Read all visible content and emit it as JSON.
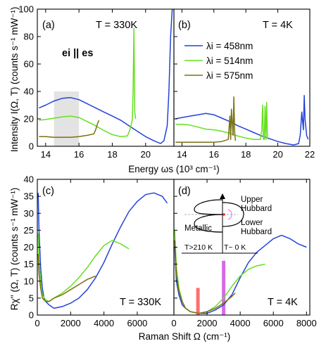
{
  "colors": {
    "blue": "#2443d8",
    "green": "#66e01f",
    "olive": "#7a7214",
    "salmon": "#ff6f6f",
    "violet": "#d66be6",
    "shade": "#e3e3e3"
  },
  "labels": {
    "y_top": "Intensity I(Ω, T) (counts s⁻¹ mW⁻¹)",
    "x_top": "Energy ωs (10³ cm⁻¹)",
    "y_bottom": "Rχ'' (Ω, T) (counts s⁻¹ mW⁻¹)",
    "x_bottom": "Raman Shift Ω (cm⁻¹)"
  },
  "panels": {
    "a": {
      "tag": "(a)",
      "temp": "T = 330K",
      "polarization": "ei || es"
    },
    "b": {
      "tag": "(b)",
      "temp": "T = 4K"
    },
    "c": {
      "tag": "(c)",
      "temp": "T = 330K"
    },
    "d": {
      "tag": "(d)",
      "temp": "T = 4K"
    }
  },
  "legend": [
    "λi = 458nm",
    "λi = 514nm",
    "λi = 575nm"
  ],
  "schematic": {
    "upper": "Upper",
    "upper2": "Hubbard",
    "metallic": "Metallic",
    "lower": "Lower",
    "lower2": "Hubbard",
    "t_high": "T>210 K",
    "t_low": "T~ 0 K"
  },
  "chart_data": [
    {
      "type": "line",
      "panel": "a",
      "xlim": [
        13.5,
        21.7
      ],
      "ylim": [
        0,
        100
      ],
      "xticks": [
        14,
        16,
        18,
        20
      ],
      "yticks": [
        0,
        20,
        40,
        60,
        80,
        100
      ],
      "shaded_region": [
        14.5,
        16
      ],
      "series": [
        {
          "name": "λi = 458nm",
          "color": "#2443d8",
          "x": [
            13.6,
            14.0,
            14.5,
            15.0,
            15.5,
            16.0,
            16.5,
            17.0,
            17.5,
            18.0,
            18.5,
            19.0,
            19.5,
            20.0,
            20.5,
            20.9,
            21.1,
            21.3,
            21.4,
            21.5,
            21.6
          ],
          "y": [
            28,
            30,
            33,
            35,
            35.5,
            34,
            31,
            28,
            25,
            22,
            19,
            15,
            11,
            7,
            4,
            2,
            4,
            15,
            40,
            80,
            100
          ]
        },
        {
          "name": "λi = 514nm",
          "color": "#66e01f",
          "x": [
            13.6,
            14.0,
            14.5,
            15.0,
            15.5,
            16.0,
            16.5,
            17.0,
            17.5,
            18.0,
            18.5,
            18.9,
            19.0,
            19.1,
            19.2,
            19.25,
            19.3,
            19.35,
            19.4
          ],
          "y": [
            19,
            19.5,
            20.5,
            21.5,
            22,
            21,
            18,
            15,
            11.5,
            8.5,
            7,
            7.5,
            10,
            14,
            19,
            40,
            86,
            25,
            20
          ]
        },
        {
          "name": "λi = 575nm",
          "color": "#7a7214",
          "x": [
            13.6,
            14.0,
            14.5,
            15.0,
            15.5,
            16.0,
            16.5,
            16.9,
            17.0,
            17.1,
            17.2
          ],
          "y": [
            7,
            7,
            6.5,
            6.5,
            6.5,
            7,
            8,
            9,
            12,
            16,
            19
          ]
        }
      ]
    },
    {
      "type": "line",
      "panel": "b",
      "xlim": [
        13.5,
        22
      ],
      "ylim": [
        0,
        100
      ],
      "xticks": [
        14,
        16,
        18,
        20,
        22
      ],
      "yticks": [
        0,
        20,
        40,
        60,
        80,
        100
      ],
      "series": [
        {
          "name": "λi = 458nm",
          "color": "#2443d8",
          "x": [
            13.6,
            14.0,
            14.5,
            15.0,
            15.5,
            16.0,
            16.5,
            17.0,
            17.5,
            18.0,
            18.5,
            19.0,
            19.5,
            20.0,
            20.5,
            21.0,
            21.3,
            21.4,
            21.5,
            21.6,
            21.65,
            21.7,
            21.8,
            21.9
          ],
          "y": [
            20,
            21,
            22,
            23,
            24,
            23,
            20.5,
            18,
            15,
            12.5,
            10,
            7.5,
            5.5,
            3.5,
            2,
            1,
            2,
            8,
            25,
            12,
            37,
            20,
            8,
            5
          ]
        },
        {
          "name": "λi = 514nm",
          "color": "#66e01f",
          "x": [
            13.6,
            14.0,
            14.5,
            15.0,
            15.5,
            16.0,
            16.5,
            17.0,
            17.5,
            18.0,
            18.5,
            18.9,
            19.0,
            19.05,
            19.1,
            19.15,
            19.2,
            19.25,
            19.3,
            19.35,
            19.4
          ],
          "y": [
            16,
            16,
            15.5,
            14,
            12.5,
            12,
            11,
            9.5,
            7.5,
            6,
            5,
            5,
            12,
            30,
            5,
            5,
            29,
            5,
            32,
            6,
            5
          ]
        },
        {
          "name": "λi = 575nm",
          "color": "#7a7214",
          "x": [
            13.6,
            14.0,
            14.5,
            15.0,
            15.5,
            16.0,
            16.5,
            16.9,
            17.0,
            17.05,
            17.1,
            17.2,
            17.25,
            17.3,
            17.35
          ],
          "y": [
            3,
            3,
            3,
            3,
            3,
            3,
            3.5,
            5,
            22,
            5,
            27,
            8,
            36,
            10,
            4
          ]
        }
      ]
    },
    {
      "type": "line",
      "panel": "c",
      "xlim": [
        0,
        8200
      ],
      "ylim": [
        0,
        40
      ],
      "xticks": [
        0,
        2000,
        4000,
        6000
      ],
      "yticks": [
        0,
        5,
        10,
        15,
        20,
        25,
        30,
        35,
        40
      ],
      "series": [
        {
          "name": "λi = 458nm",
          "color": "#2443d8",
          "x": [
            50,
            100,
            200,
            300,
            400,
            500,
            700,
            1000,
            1500,
            2000,
            2500,
            3000,
            3500,
            4000,
            4500,
            5000,
            5500,
            6000,
            6500,
            7000,
            7500,
            7800
          ],
          "y": [
            36,
            25,
            14,
            8,
            5,
            4,
            3,
            2,
            2.5,
            3.5,
            5,
            7.5,
            11,
            15.5,
            21,
            26,
            30.5,
            33.5,
            35.5,
            36,
            35,
            33
          ]
        },
        {
          "name": "λi = 514nm",
          "color": "#66e01f",
          "x": [
            50,
            100,
            200,
            300,
            500,
            700,
            1000,
            1500,
            2000,
            2500,
            3000,
            3500,
            4000,
            4500,
            5000,
            5500
          ],
          "y": [
            24,
            16,
            10,
            6,
            4.5,
            4,
            5,
            6.5,
            8.5,
            11,
            14,
            17.5,
            20.5,
            22,
            21,
            19.5
          ]
        },
        {
          "name": "λi = 575nm",
          "color": "#7a7214",
          "x": [
            50,
            100,
            200,
            300,
            500,
            700,
            1000,
            1500,
            2000,
            2500,
            3000,
            3500
          ],
          "y": [
            18,
            12,
            8,
            5,
            4,
            4,
            5,
            6,
            7.5,
            9,
            10.5,
            11.5
          ]
        }
      ]
    },
    {
      "type": "line",
      "panel": "d",
      "xlim": [
        0,
        8200
      ],
      "ylim": [
        0,
        40
      ],
      "xticks": [
        0,
        2000,
        4000,
        6000,
        8000
      ],
      "yticks": [
        0,
        5,
        10,
        15,
        20,
        25,
        30,
        35,
        40
      ],
      "markers": [
        {
          "x": 1450,
          "height": 8,
          "color": "#ff6f6f"
        },
        {
          "x": 3000,
          "height": 16,
          "color": "#d66be6"
        }
      ],
      "series": [
        {
          "name": "λi = 458nm",
          "color": "#2443d8",
          "x": [
            50,
            150,
            300,
            500,
            700,
            1000,
            1500,
            2000,
            2500,
            3000,
            3500,
            4000,
            4500,
            5000,
            5500,
            6000,
            6500,
            7000,
            7500,
            8000
          ],
          "y": [
            20,
            10,
            6,
            3,
            2,
            1,
            0.5,
            0.5,
            1.5,
            3,
            6,
            11,
            15.5,
            18.5,
            20.5,
            22.5,
            23.5,
            22.5,
            21,
            20
          ]
        },
        {
          "name": "λi = 514nm",
          "color": "#66e01f",
          "x": [
            50,
            150,
            300,
            500,
            700,
            1000,
            1500,
            2000,
            2500,
            3000,
            3500,
            4000,
            4500,
            5000,
            5500
          ],
          "y": [
            25,
            14,
            8,
            4,
            2,
            1,
            0.5,
            1,
            2.5,
            5,
            8.5,
            11.5,
            13.5,
            14.5,
            15
          ]
        },
        {
          "name": "λi = 575nm",
          "color": "#7a7214",
          "x": [
            50,
            150,
            300,
            500,
            700,
            1000,
            1500,
            2000,
            2500,
            3000,
            3500,
            3700
          ],
          "y": [
            22,
            12,
            7,
            4,
            2,
            1,
            0.5,
            1,
            2,
            3.5,
            5.5,
            6.5
          ]
        }
      ]
    }
  ]
}
